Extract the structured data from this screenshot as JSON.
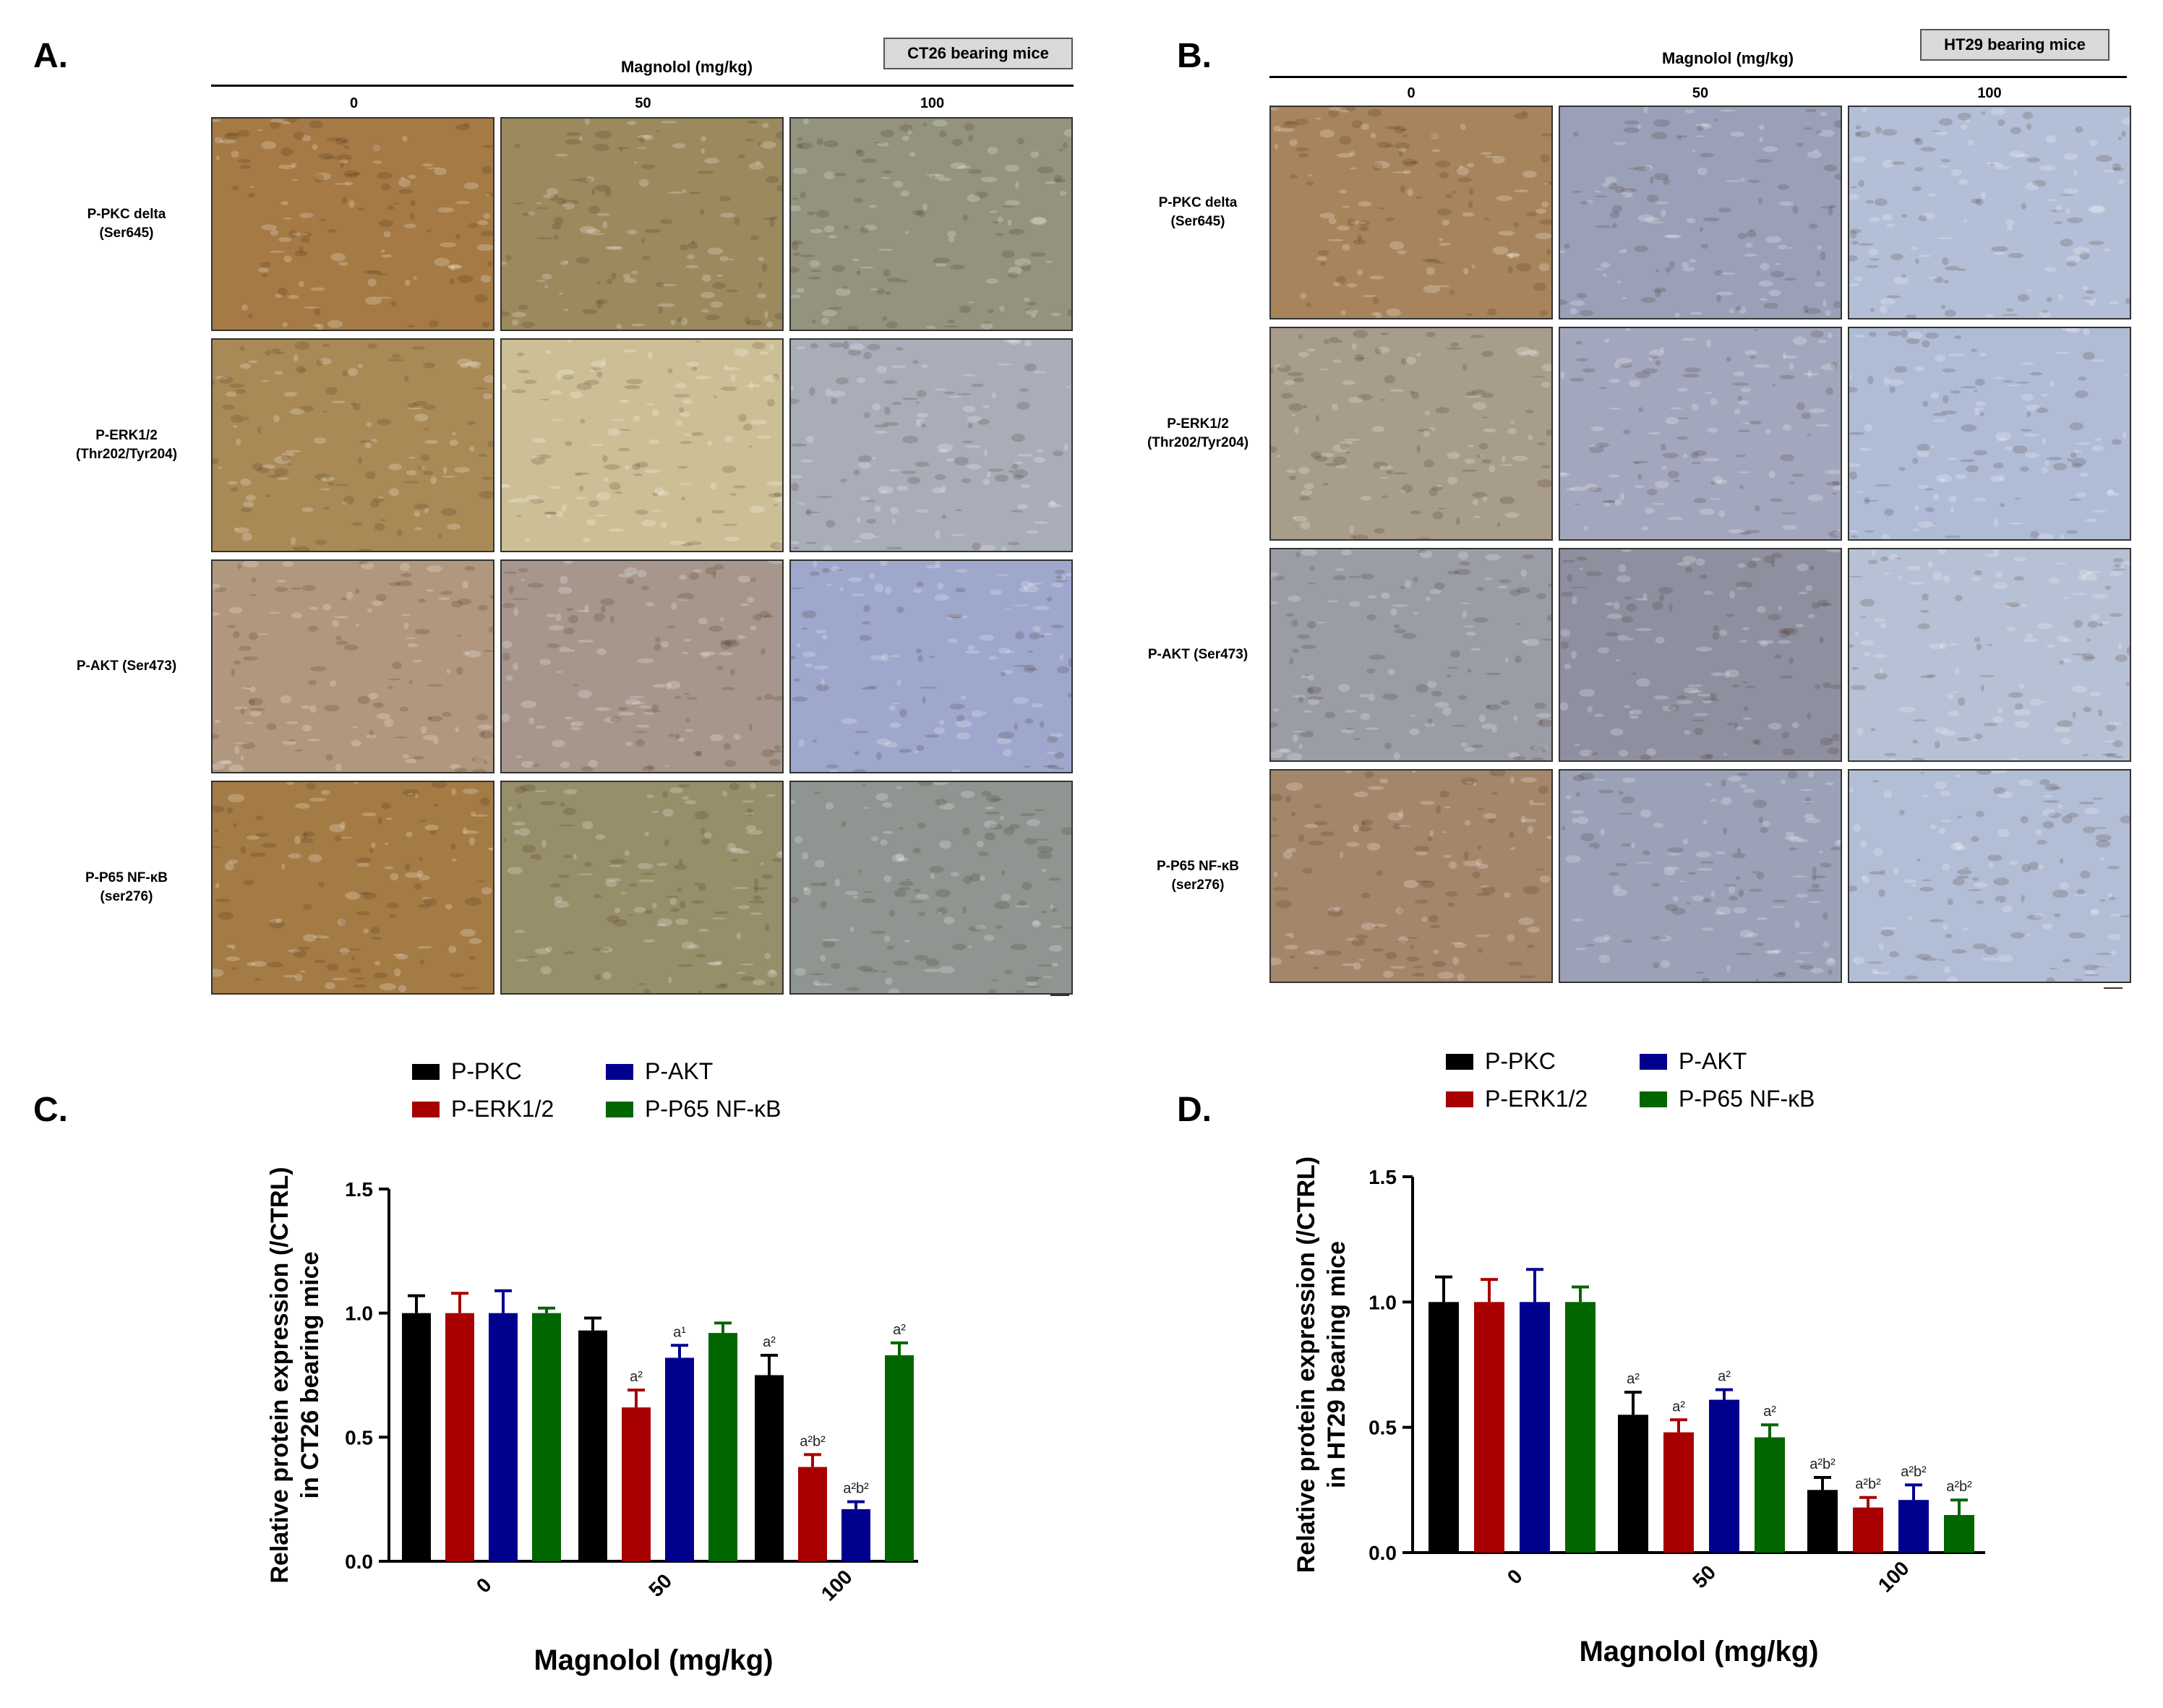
{
  "panelA": {
    "letter": "A.",
    "dose_title": "Magnolol (mg/kg)",
    "model": "CT26 bearing mice",
    "doses": [
      "0",
      "50",
      "100"
    ],
    "rows": [
      {
        "label1": "P-PKC delta",
        "label2": "(Ser645)",
        "tones": [
          "#a57a45",
          "#9c8a5e",
          "#93937e"
        ]
      },
      {
        "label1": "P-ERK1/2",
        "label2": "(Thr202/Tyr204)",
        "tones": [
          "#a98a57",
          "#cdbf95",
          "#a8adb8"
        ]
      },
      {
        "label1": "P-AKT (Ser473)",
        "label2": "",
        "tones": [
          "#b0977e",
          "#a6968c",
          "#9ea7cc"
        ]
      },
      {
        "label1": "P-P65 NF-κB",
        "label2": "(ser276)",
        "tones": [
          "#a57b45",
          "#978e6a",
          "#8f9590"
        ]
      }
    ]
  },
  "panelB": {
    "letter": "B.",
    "dose_title": "Magnolol (mg/kg)",
    "model": "HT29 bearing mice",
    "doses": [
      "0",
      "50",
      "100"
    ],
    "rows": [
      {
        "label1": "P-PKC delta",
        "label2": "(Ser645)",
        "tones": [
          "#a8845c",
          "#9aa0b8",
          "#b3bfd6"
        ]
      },
      {
        "label1": "P-ERK1/2",
        "label2": "(Thr202/Tyr204)",
        "tones": [
          "#a89c8a",
          "#a3a7bd",
          "#b0bcd6"
        ]
      },
      {
        "label1": "P-AKT (Ser473)",
        "label2": "",
        "tones": [
          "#9a9da6",
          "#8e90a0",
          "#b7c1d5"
        ]
      },
      {
        "label1": "P-P65 NF-κB",
        "label2": "(ser276)",
        "tones": [
          "#a4866a",
          "#9ba1b7",
          "#b2bed6"
        ]
      }
    ]
  },
  "legend": {
    "colors": [
      "#000000",
      "#a80000",
      "#00008f",
      "#006600"
    ]
  },
  "chart_data": [
    {
      "panel": "C.",
      "type": "bar",
      "categories": [
        "0",
        "50",
        "100"
      ],
      "series": [
        {
          "name": "P-PKC",
          "values": [
            1.0,
            0.93,
            0.75
          ],
          "errors": [
            0.07,
            0.05,
            0.08
          ],
          "labels": [
            "",
            "",
            "a²"
          ]
        },
        {
          "name": "P-ERK1/2",
          "values": [
            1.0,
            0.62,
            0.38
          ],
          "errors": [
            0.08,
            0.07,
            0.05
          ],
          "labels": [
            "",
            "a²",
            "a²b²"
          ]
        },
        {
          "name": "P-AKT",
          "values": [
            1.0,
            0.82,
            0.21
          ],
          "errors": [
            0.09,
            0.05,
            0.03
          ],
          "labels": [
            "",
            "a¹",
            "a²b²"
          ]
        },
        {
          "name": "P-P65 NF-κB",
          "values": [
            1.0,
            0.92,
            0.83
          ],
          "errors": [
            0.02,
            0.04,
            0.05
          ],
          "labels": [
            "",
            "",
            "a²"
          ]
        }
      ],
      "ylabel": "Relative protein expression (/CTRL)",
      "ylabel2": "in CT26 bearing mice",
      "xlabel": "Magnolol (mg/kg)",
      "ylim": [
        0,
        1.5
      ],
      "yticks": [
        "0.0",
        "0.5",
        "1.0",
        "1.5"
      ]
    },
    {
      "panel": "D.",
      "type": "bar",
      "categories": [
        "0",
        "50",
        "100"
      ],
      "series": [
        {
          "name": "P-PKC",
          "values": [
            1.0,
            0.55,
            0.25
          ],
          "errors": [
            0.1,
            0.09,
            0.05
          ],
          "labels": [
            "",
            "a²",
            "a²b²"
          ]
        },
        {
          "name": "P-ERK1/2",
          "values": [
            1.0,
            0.48,
            0.18
          ],
          "errors": [
            0.09,
            0.05,
            0.04
          ],
          "labels": [
            "",
            "a²",
            "a²b²"
          ]
        },
        {
          "name": "P-AKT",
          "values": [
            1.0,
            0.61,
            0.21
          ],
          "errors": [
            0.13,
            0.04,
            0.06
          ],
          "labels": [
            "",
            "a²",
            "a²b²"
          ]
        },
        {
          "name": "P-P65 NF-κB",
          "values": [
            1.0,
            0.46,
            0.15
          ],
          "errors": [
            0.06,
            0.05,
            0.06
          ],
          "labels": [
            "",
            "a²",
            "a²b²"
          ]
        }
      ],
      "ylabel": "Relative protein expression (/CTRL)",
      "ylabel2": "in HT29 bearing mice",
      "xlabel": "Magnolol (mg/kg)",
      "ylim": [
        0,
        1.5
      ],
      "yticks": [
        "0.0",
        "0.5",
        "1.0",
        "1.5"
      ]
    }
  ]
}
